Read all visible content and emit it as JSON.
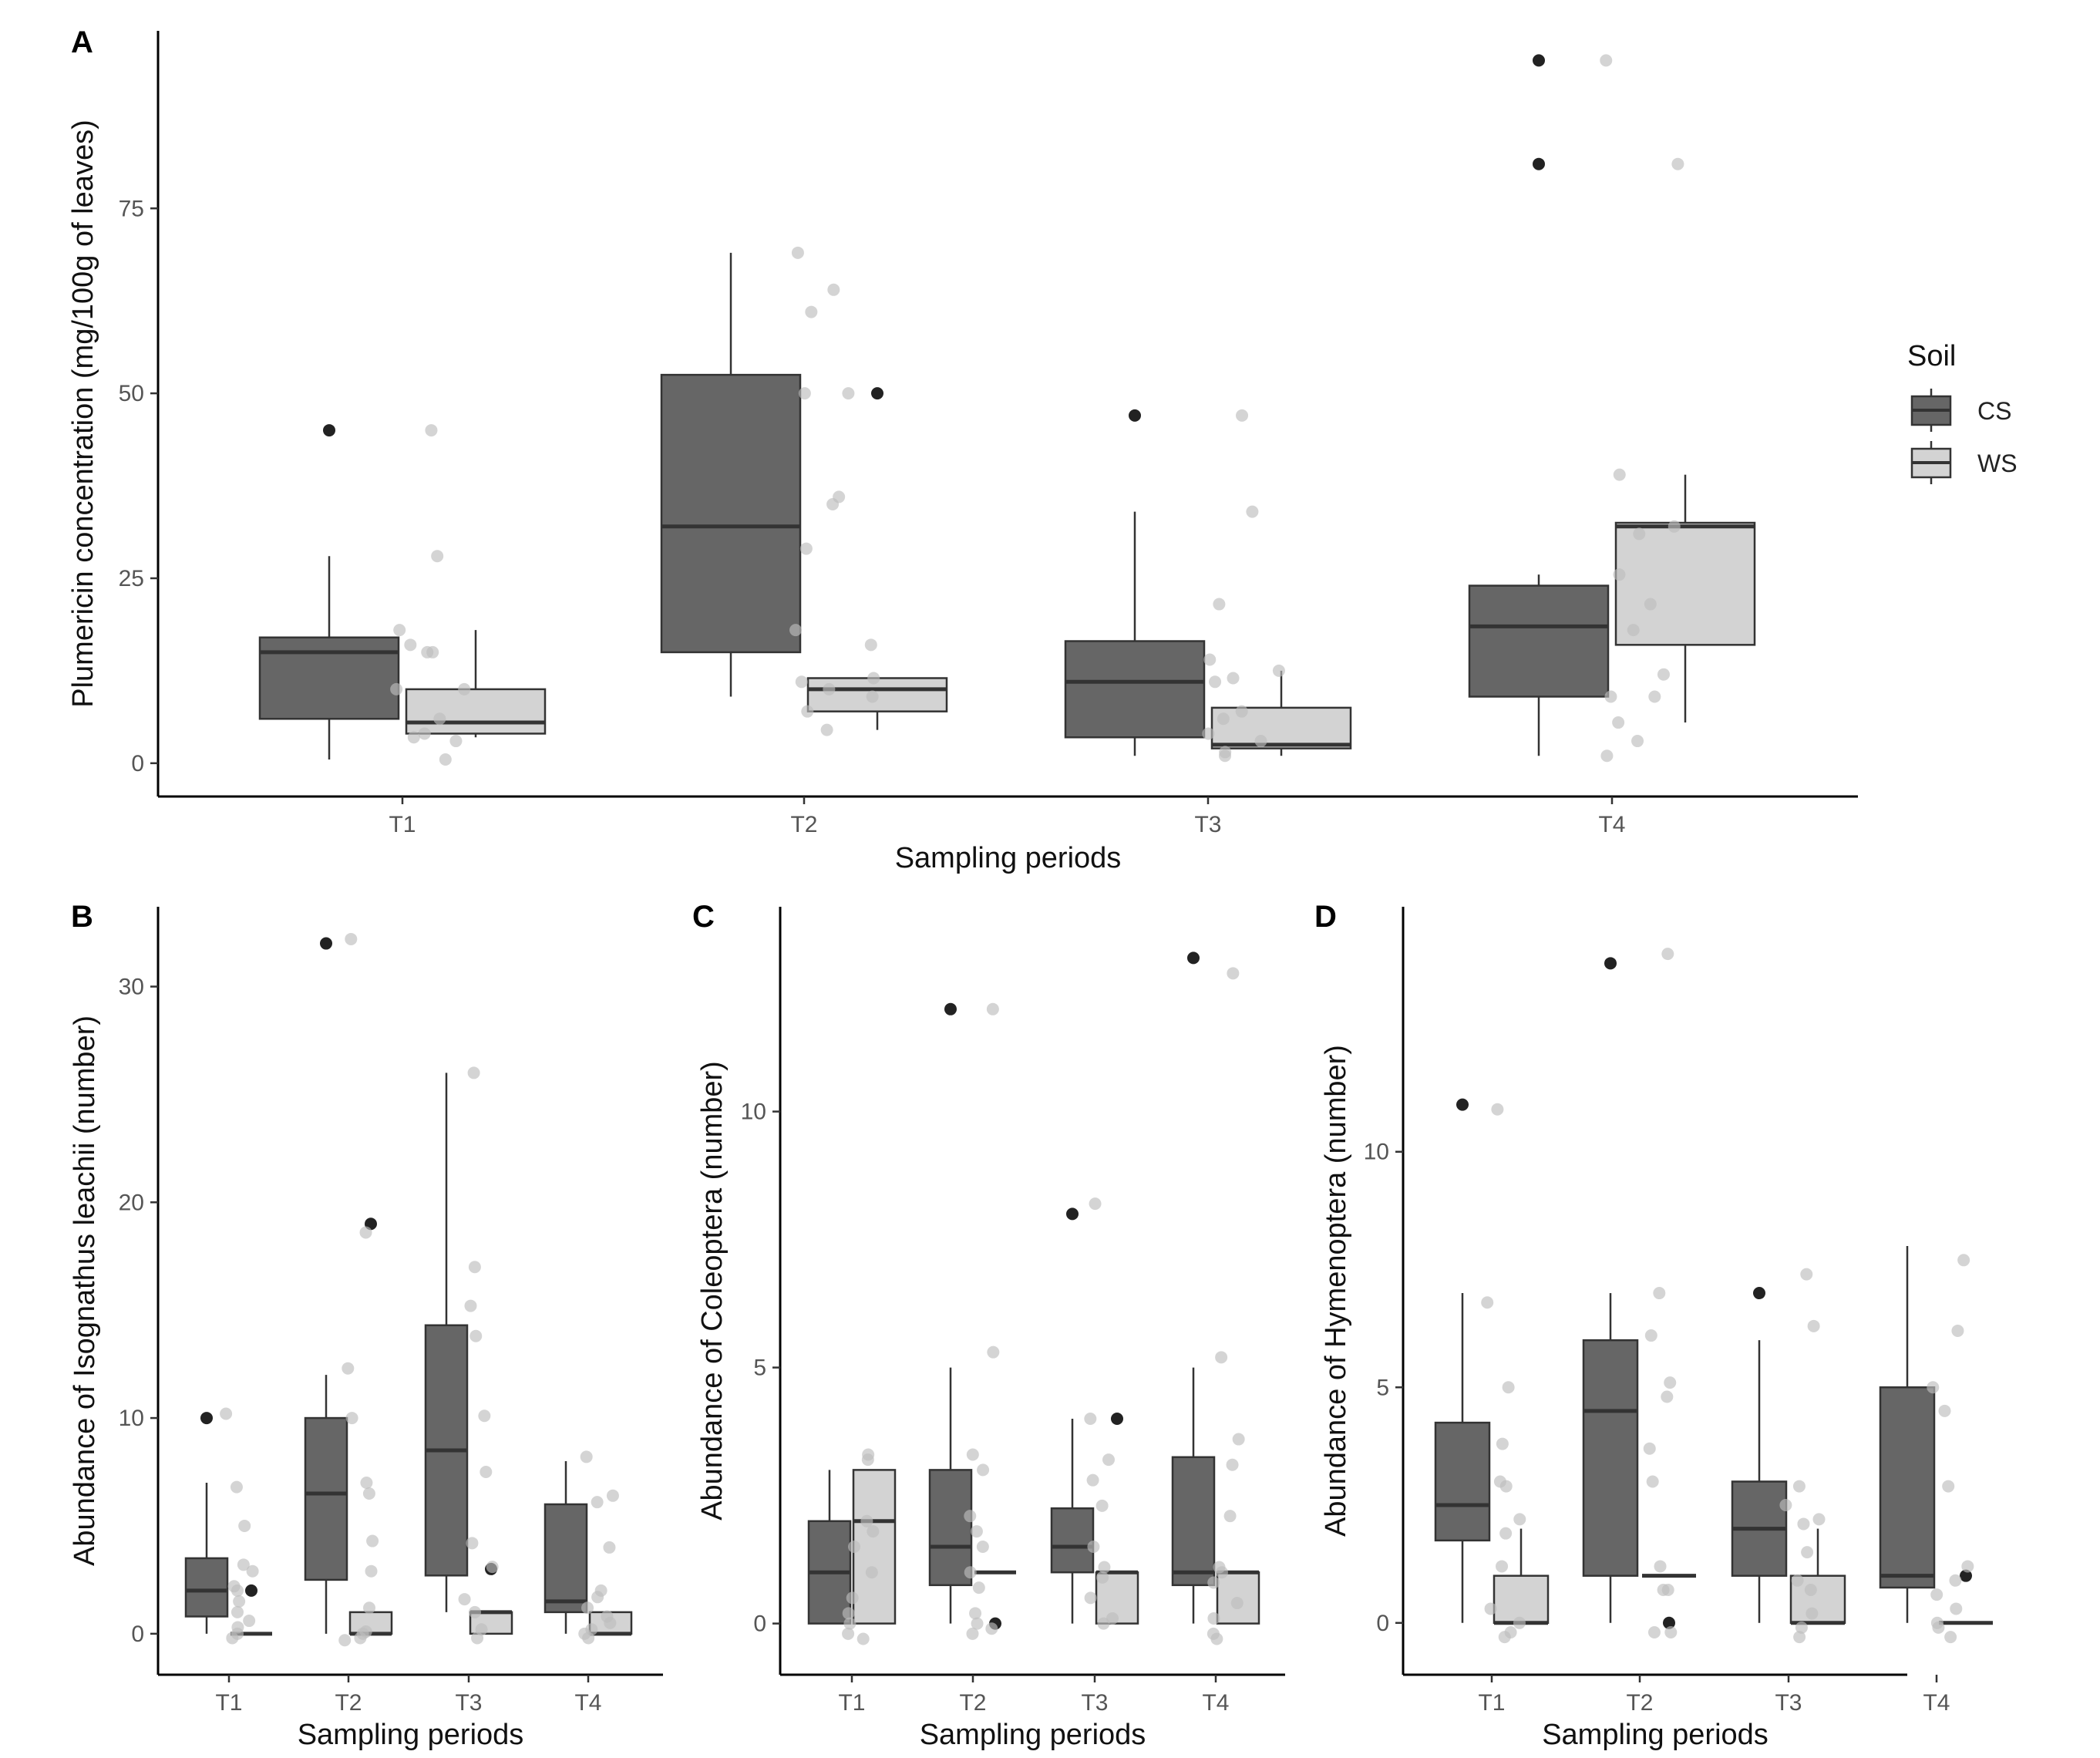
{
  "legend": {
    "title": "Soil",
    "items": [
      {
        "label": "CS",
        "fill": "#666666"
      },
      {
        "label": "WS",
        "fill": "#d3d3d3"
      }
    ]
  },
  "colors": {
    "cs_fill": "#666666",
    "ws_fill": "#d3d3d3",
    "outline": "#333333",
    "axis": "#000000",
    "outlier": "#222222",
    "jitter": "#bdbdbd"
  },
  "chart_data": [
    {
      "panel": "A",
      "type": "box",
      "title": "",
      "xlabel": "Sampling periods",
      "ylabel": "Plumericin concentration (mg/100g of leaves)",
      "categories": [
        "T1",
        "T2",
        "T3",
        "T4"
      ],
      "ylim": [
        -4.5,
        99
      ],
      "yticks": [
        0,
        25,
        50,
        75
      ],
      "series": [
        {
          "name": "CS",
          "boxes": [
            {
              "min": 0.5,
              "q1": 6,
              "median": 15,
              "q3": 17,
              "max": 28,
              "outliers": [
                45
              ]
            },
            {
              "min": 9,
              "q1": 15,
              "median": 32,
              "q3": 52.5,
              "max": 69,
              "outliers": []
            },
            {
              "min": 1,
              "q1": 3.5,
              "median": 11,
              "q3": 16.5,
              "max": 34,
              "outliers": [
                47
              ]
            },
            {
              "min": 1,
              "q1": 9,
              "median": 18.5,
              "q3": 24,
              "max": 25.5,
              "outliers": [
                81,
                95
              ]
            }
          ]
        },
        {
          "name": "WS",
          "boxes": [
            {
              "min": 3.5,
              "q1": 4,
              "median": 5.5,
              "q3": 10,
              "max": 18,
              "outliers": []
            },
            {
              "min": 4.5,
              "q1": 7,
              "median": 10,
              "q3": 11.5,
              "max": 11.5,
              "outliers": [
                50
              ]
            },
            {
              "min": 1,
              "q1": 2,
              "median": 2.5,
              "q3": 7.5,
              "max": 12.5,
              "outliers": []
            },
            {
              "min": 5.5,
              "q1": 16,
              "median": 32,
              "q3": 32.5,
              "max": 39,
              "outliers": []
            }
          ]
        }
      ],
      "points": [
        [
          45,
          28,
          18,
          16,
          15,
          15,
          10,
          10,
          6,
          4,
          3.5,
          3,
          0.5
        ],
        [
          69,
          64,
          61,
          50,
          50,
          36,
          35,
          29,
          18,
          16,
          11.5,
          11,
          10,
          9,
          7,
          4.5
        ],
        [
          47,
          34,
          21.5,
          14,
          12.5,
          11.5,
          11,
          7,
          6,
          4,
          3,
          1.5,
          1
        ],
        [
          95,
          81,
          39,
          32,
          31,
          25.5,
          21.5,
          18,
          12,
          9,
          9,
          5.5,
          3,
          1
        ]
      ]
    },
    {
      "panel": "B",
      "type": "box",
      "title": "",
      "xlabel": "Sampling periods",
      "ylabel": "Abundance of Isognathus leachii (number)",
      "categories": [
        "T1",
        "T2",
        "T3",
        "T4"
      ],
      "ylim": [
        -1.9,
        33.7
      ],
      "yticks": [
        0,
        10,
        20,
        30
      ],
      "series": [
        {
          "name": "CS",
          "boxes": [
            {
              "min": 0,
              "q1": 0.8,
              "median": 2,
              "q3": 3.5,
              "max": 7,
              "outliers": [
                10
              ]
            },
            {
              "min": 0,
              "q1": 2.5,
              "median": 6.5,
              "q3": 10,
              "max": 12,
              "outliers": [
                32
              ]
            },
            {
              "min": 1,
              "q1": 2.7,
              "median": 8.5,
              "q3": 14.3,
              "max": 26,
              "outliers": []
            },
            {
              "min": 0,
              "q1": 1,
              "median": 1.5,
              "q3": 6,
              "max": 8,
              "outliers": []
            }
          ]
        },
        {
          "name": "WS",
          "boxes": [
            {
              "min": 0,
              "q1": 0,
              "median": 0,
              "q3": 0,
              "max": 0,
              "outliers": [
                2
              ]
            },
            {
              "min": 0,
              "q1": 0,
              "median": 0,
              "q3": 1,
              "max": 1,
              "outliers": [
                19
              ]
            },
            {
              "min": 0,
              "q1": 0,
              "median": 1,
              "q3": 1,
              "max": 1,
              "outliers": [
                3
              ]
            },
            {
              "min": 0,
              "q1": 0,
              "median": 0,
              "q3": 1,
              "max": 1,
              "outliers": []
            }
          ]
        }
      ],
      "points": [
        [
          10.2,
          6.8,
          5,
          3.2,
          2.9,
          2.2,
          2,
          1.5,
          1,
          0.6,
          0.3,
          0,
          -0.2
        ],
        [
          32.2,
          18.6,
          12.3,
          10,
          7,
          6.5,
          4.3,
          2.9,
          1.2,
          0.1,
          0,
          -0.2,
          -0.3
        ],
        [
          26,
          17,
          15.2,
          13.8,
          10.1,
          7.5,
          4.2,
          3.1,
          1.6,
          1,
          0.2,
          -0.2
        ],
        [
          8.2,
          6.4,
          6.1,
          4,
          2,
          1.7,
          1.2,
          0.8,
          0.5,
          0.2,
          0,
          -0.2
        ]
      ]
    },
    {
      "panel": "C",
      "type": "box",
      "title": "",
      "xlabel": "Sampling periods",
      "ylabel": "Abundance of Coleoptera (number)",
      "categories": [
        "T1",
        "T2",
        "T3",
        "T4"
      ],
      "ylim": [
        -1,
        14
      ],
      "yticks": [
        0,
        5,
        10
      ],
      "series": [
        {
          "name": "CS",
          "boxes": [
            {
              "min": 0,
              "q1": 0,
              "median": 1,
              "q3": 2,
              "max": 3,
              "outliers": []
            },
            {
              "min": 0,
              "q1": 0.75,
              "median": 1.5,
              "q3": 3,
              "max": 5,
              "outliers": [
                12
              ]
            },
            {
              "min": 0,
              "q1": 1,
              "median": 1.5,
              "q3": 2.25,
              "max": 4,
              "outliers": [
                8
              ]
            },
            {
              "min": 0,
              "q1": 0.75,
              "median": 1,
              "q3": 3.25,
              "max": 5,
              "outliers": [
                13
              ]
            }
          ]
        },
        {
          "name": "WS",
          "boxes": [
            {
              "min": 0,
              "q1": 0,
              "median": 2,
              "q3": 3,
              "max": 3,
              "outliers": []
            },
            {
              "min": 1,
              "q1": 1,
              "median": 1,
              "q3": 1,
              "max": 1,
              "outliers": [
                0
              ]
            },
            {
              "min": 0,
              "q1": 0,
              "median": 1,
              "q3": 1,
              "max": 1,
              "outliers": [
                4
              ]
            },
            {
              "min": 0,
              "q1": 0,
              "median": 1,
              "q3": 1,
              "max": 1,
              "outliers": []
            }
          ]
        }
      ],
      "points": [
        [
          3.3,
          3.2,
          2,
          1.8,
          1.5,
          1,
          0.5,
          0.2,
          0,
          -0.2,
          -0.3
        ],
        [
          12,
          5.3,
          3.3,
          3,
          2.1,
          1.8,
          1.5,
          1,
          0.7,
          0.2,
          0,
          -0.1,
          -0.2
        ],
        [
          8.2,
          4,
          3.2,
          2.8,
          2.3,
          1.5,
          1.1,
          0.9,
          0.5,
          0.1,
          0
        ],
        [
          12.7,
          5.2,
          3.6,
          3.1,
          2.1,
          1.1,
          1,
          0.8,
          0.4,
          0.1,
          -0.2,
          -0.3
        ]
      ]
    },
    {
      "panel": "D",
      "type": "box",
      "title": "",
      "xlabel": "Sampling periods",
      "ylabel": "Abundance of Hymenoptera (number)",
      "categories": [
        "T1",
        "T2",
        "T3",
        "T4"
      ],
      "ylim": [
        -1.1,
        15.2
      ],
      "yticks": [
        0,
        5,
        10
      ],
      "series": [
        {
          "name": "CS",
          "boxes": [
            {
              "min": 0,
              "q1": 1.75,
              "median": 2.5,
              "q3": 4.25,
              "max": 7,
              "outliers": [
                11
              ]
            },
            {
              "min": 0,
              "q1": 1,
              "median": 4.5,
              "q3": 6,
              "max": 7,
              "outliers": [
                14
              ]
            },
            {
              "min": 0,
              "q1": 1,
              "median": 2,
              "q3": 3,
              "max": 6,
              "outliers": [
                7
              ]
            },
            {
              "min": 0,
              "q1": 0.75,
              "median": 1,
              "q3": 5,
              "max": 8,
              "outliers": []
            }
          ]
        },
        {
          "name": "WS",
          "boxes": [
            {
              "min": 0,
              "q1": 0,
              "median": 0,
              "q3": 1,
              "max": 2,
              "outliers": []
            },
            {
              "min": 1,
              "q1": 1,
              "median": 1,
              "q3": 1,
              "max": 1,
              "outliers": [
                0
              ]
            },
            {
              "min": 0,
              "q1": 0,
              "median": 0,
              "q3": 1,
              "max": 2,
              "outliers": []
            },
            {
              "min": 0,
              "q1": 0,
              "median": 0,
              "q3": 0,
              "max": 0,
              "outliers": [
                1
              ]
            }
          ]
        }
      ],
      "points": [
        [
          10.9,
          6.8,
          5,
          3.8,
          3,
          2.9,
          2.2,
          1.9,
          1.2,
          0.3,
          0,
          -0.2,
          -0.3
        ],
        [
          14.2,
          7,
          6.1,
          5.1,
          4.8,
          3.7,
          3,
          1.2,
          0.7,
          0.7,
          -0.2,
          -0.2
        ],
        [
          7.4,
          6.3,
          2.9,
          2.5,
          2.2,
          2.1,
          1.5,
          0.9,
          0.7,
          0.2,
          -0.1,
          -0.3
        ],
        [
          7.7,
          6.2,
          5,
          4.5,
          2.9,
          1.2,
          0.9,
          0.6,
          0.3,
          0,
          -0.1,
          -0.3
        ]
      ]
    }
  ]
}
